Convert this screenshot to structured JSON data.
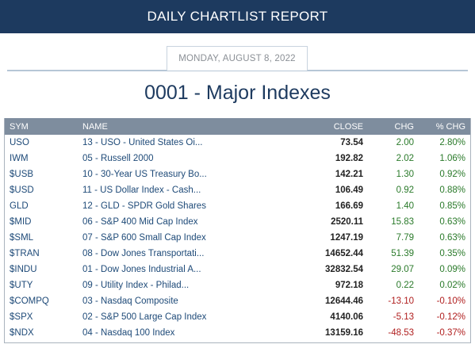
{
  "banner": {
    "title": "DAILY CHARTLIST REPORT"
  },
  "date": "MONDAY, AUGUST 8, 2022",
  "list_title": "0001 - Major Indexes",
  "colors": {
    "banner_bg": "#1d3a5f",
    "header_bg": "#7e8d9e",
    "positive": "#2a7a2a",
    "negative": "#b01e1e",
    "link": "#1e4a78"
  },
  "table": {
    "headers": {
      "sym": "SYM",
      "name": "NAME",
      "close": "CLOSE",
      "chg": "CHG",
      "pct": "% CHG"
    },
    "rows": [
      {
        "sym": "USO",
        "name": "13 - USO - United States Oi...",
        "close": "73.54",
        "chg": "2.00",
        "pct": "2.80%",
        "dir": "pos"
      },
      {
        "sym": "IWM",
        "name": "05 - Russell 2000",
        "close": "192.82",
        "chg": "2.02",
        "pct": "1.06%",
        "dir": "pos"
      },
      {
        "sym": "$USB",
        "name": "10 - 30-Year US Treasury Bo...",
        "close": "142.21",
        "chg": "1.30",
        "pct": "0.92%",
        "dir": "pos"
      },
      {
        "sym": "$USD",
        "name": "11 - US Dollar Index - Cash...",
        "close": "106.49",
        "chg": "0.92",
        "pct": "0.88%",
        "dir": "pos"
      },
      {
        "sym": "GLD",
        "name": "12 - GLD - SPDR Gold Shares",
        "close": "166.69",
        "chg": "1.40",
        "pct": "0.85%",
        "dir": "pos"
      },
      {
        "sym": "$MID",
        "name": "06 - S&P 400 Mid Cap Index",
        "close": "2520.11",
        "chg": "15.83",
        "pct": "0.63%",
        "dir": "pos"
      },
      {
        "sym": "$SML",
        "name": "07 - S&P 600 Small Cap Index",
        "close": "1247.19",
        "chg": "7.79",
        "pct": "0.63%",
        "dir": "pos"
      },
      {
        "sym": "$TRAN",
        "name": "08 - Dow Jones Transportati...",
        "close": "14652.44",
        "chg": "51.39",
        "pct": "0.35%",
        "dir": "pos"
      },
      {
        "sym": "$INDU",
        "name": "01 - Dow Jones Industrial A...",
        "close": "32832.54",
        "chg": "29.07",
        "pct": "0.09%",
        "dir": "pos"
      },
      {
        "sym": "$UTY",
        "name": "09 - Utility Index - Philad...",
        "close": "972.18",
        "chg": "0.22",
        "pct": "0.02%",
        "dir": "pos"
      },
      {
        "sym": "$COMPQ",
        "name": "03 - Nasdaq Composite",
        "close": "12644.46",
        "chg": "-13.10",
        "pct": "-0.10%",
        "dir": "neg"
      },
      {
        "sym": "$SPX",
        "name": "02 - S&P 500 Large Cap Index",
        "close": "4140.06",
        "chg": "-5.13",
        "pct": "-0.12%",
        "dir": "neg"
      },
      {
        "sym": "$NDX",
        "name": "04 - Nasdaq 100 Index",
        "close": "13159.16",
        "chg": "-48.53",
        "pct": "-0.37%",
        "dir": "neg"
      }
    ]
  }
}
